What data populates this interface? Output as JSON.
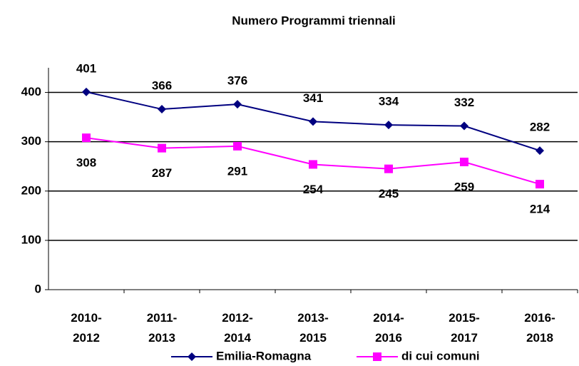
{
  "chart_data": {
    "type": "line",
    "title": "Numero Programmi triennali",
    "categories": [
      "2010-2012",
      "2011-2013",
      "2012-2014",
      "2013-2015",
      "2014-2016",
      "2015-2017",
      "2016-2018"
    ],
    "series": [
      {
        "name": "Emilia-Romagna",
        "color": "#000080",
        "marker": "diamond",
        "values": [
          401,
          366,
          376,
          341,
          334,
          332,
          282
        ]
      },
      {
        "name": "di cui comuni",
        "color": "#ff00ff",
        "marker": "square",
        "values": [
          308,
          287,
          291,
          254,
          245,
          259,
          214
        ]
      }
    ],
    "ylim": [
      0,
      450
    ],
    "yticks": [
      0,
      100,
      200,
      300,
      400
    ],
    "grid": true,
    "legend": "bottom"
  }
}
